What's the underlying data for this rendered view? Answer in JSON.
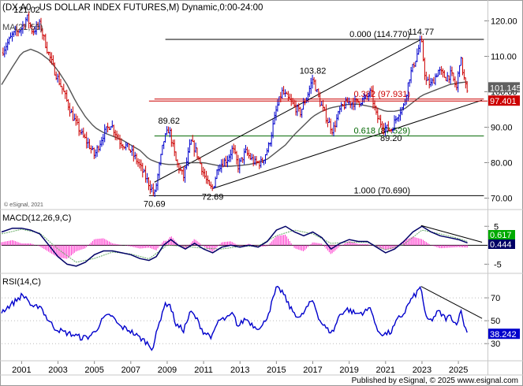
{
  "chart_data": [
    {
      "type": "line",
      "title": "(DX A0 - US DOLLAR INDEX FUTURES,M) Dynamic,0:00-24:00",
      "legend": "MA(21,55)",
      "watermark": "© eSignal, 2021",
      "ylim": [
        67,
        125
      ],
      "yticks": [
        "120.00",
        "110.00",
        "100.00",
        "90.00",
        "80.00",
        "70.00"
      ],
      "ytick_values": [
        120,
        110,
        100,
        90,
        80,
        70
      ],
      "x_labels": [
        "2001",
        "2003",
        "2005",
        "2007",
        "2009",
        "2011",
        "2013",
        "2015",
        "2017",
        "2019",
        "2021",
        "2023",
        "2025"
      ],
      "x_label_years": [
        2001,
        2003,
        2005,
        2007,
        2009,
        2011,
        2013,
        2015,
        2017,
        2019,
        2021,
        2023,
        2025
      ],
      "xlim": [
        1999.9,
        2026.6
      ],
      "price_keypoints": [
        [
          1999.9,
          111
        ],
        [
          2000.5,
          116
        ],
        [
          2001.0,
          118
        ],
        [
          2001.3,
          121
        ],
        [
          2001.6,
          117
        ],
        [
          2002.0,
          119
        ],
        [
          2002.4,
          112
        ],
        [
          2002.8,
          106
        ],
        [
          2003.3,
          100
        ],
        [
          2003.8,
          93
        ],
        [
          2004.3,
          88
        ],
        [
          2004.7,
          85
        ],
        [
          2005.0,
          82
        ],
        [
          2005.5,
          88
        ],
        [
          2005.9,
          91
        ],
        [
          2006.4,
          86
        ],
        [
          2006.9,
          84
        ],
        [
          2007.4,
          80
        ],
        [
          2007.8,
          76
        ],
        [
          2008.2,
          72
        ],
        [
          2008.3,
          70.69
        ],
        [
          2008.6,
          80
        ],
        [
          2008.8,
          86
        ],
        [
          2009.1,
          89.62
        ],
        [
          2009.5,
          80
        ],
        [
          2009.9,
          76
        ],
        [
          2010.3,
          86
        ],
        [
          2010.6,
          83
        ],
        [
          2011.0,
          77
        ],
        [
          2011.3,
          73
        ],
        [
          2011.5,
          72.69
        ],
        [
          2011.8,
          79
        ],
        [
          2012.3,
          81
        ],
        [
          2012.6,
          84
        ],
        [
          2012.9,
          79
        ],
        [
          2013.3,
          83
        ],
        [
          2013.8,
          80
        ],
        [
          2014.2,
          80
        ],
        [
          2014.6,
          85
        ],
        [
          2015.0,
          95
        ],
        [
          2015.3,
          100
        ],
        [
          2015.8,
          97
        ],
        [
          2016.3,
          94
        ],
        [
          2016.7,
          99
        ],
        [
          2017.0,
          103.82
        ],
        [
          2017.4,
          97
        ],
        [
          2017.8,
          92
        ],
        [
          2018.1,
          89
        ],
        [
          2018.5,
          95
        ],
        [
          2018.9,
          97
        ],
        [
          2019.4,
          97
        ],
        [
          2019.9,
          98
        ],
        [
          2020.2,
          100
        ],
        [
          2020.5,
          93
        ],
        [
          2020.9,
          90
        ],
        [
          2021.3,
          89.2
        ],
        [
          2021.7,
          94
        ],
        [
          2022.0,
          96
        ],
        [
          2022.3,
          104
        ],
        [
          2022.7,
          110
        ],
        [
          2022.95,
          114.77
        ],
        [
          2023.2,
          103
        ],
        [
          2023.5,
          102
        ],
        [
          2023.9,
          106
        ],
        [
          2024.3,
          104
        ],
        [
          2024.6,
          105
        ],
        [
          2024.9,
          101
        ],
        [
          2025.1,
          110
        ],
        [
          2025.3,
          104
        ],
        [
          2025.5,
          99
        ]
      ],
      "ma_keypoints": [
        [
          1999.9,
          102
        ],
        [
          2000.5,
          107
        ],
        [
          2001.0,
          111
        ],
        [
          2001.5,
          112
        ],
        [
          2002.0,
          111
        ],
        [
          2002.5,
          109
        ],
        [
          2003.0,
          106
        ],
        [
          2003.5,
          102
        ],
        [
          2004.0,
          97
        ],
        [
          2004.5,
          93
        ],
        [
          2005.0,
          90
        ],
        [
          2005.5,
          88.5
        ],
        [
          2006.0,
          87.5
        ],
        [
          2006.5,
          86.5
        ],
        [
          2007.0,
          85
        ],
        [
          2007.5,
          83.5
        ],
        [
          2008.0,
          81
        ],
        [
          2008.5,
          80
        ],
        [
          2009.0,
          79.5
        ],
        [
          2009.5,
          79.5
        ],
        [
          2010.0,
          80
        ],
        [
          2010.5,
          80
        ],
        [
          2011.0,
          80
        ],
        [
          2011.5,
          79.5
        ],
        [
          2012.0,
          79
        ],
        [
          2012.5,
          79
        ],
        [
          2013.0,
          79.2
        ],
        [
          2013.5,
          79.5
        ],
        [
          2014.0,
          80
        ],
        [
          2014.5,
          81
        ],
        [
          2015.0,
          83
        ],
        [
          2015.5,
          85
        ],
        [
          2016.0,
          88
        ],
        [
          2016.5,
          90.5
        ],
        [
          2017.0,
          93
        ],
        [
          2017.5,
          94.5
        ],
        [
          2018.0,
          95.5
        ],
        [
          2018.5,
          96
        ],
        [
          2019.0,
          96.5
        ],
        [
          2019.5,
          96.5
        ],
        [
          2020.0,
          96
        ],
        [
          2020.5,
          95.5
        ],
        [
          2021.0,
          94.5
        ],
        [
          2021.5,
          94.5
        ],
        [
          2022.0,
          95
        ],
        [
          2022.5,
          97
        ],
        [
          2023.0,
          99
        ],
        [
          2023.5,
          100
        ],
        [
          2024.0,
          101
        ],
        [
          2024.5,
          102
        ],
        [
          2025.0,
          102.5
        ],
        [
          2025.5,
          102.8
        ]
      ],
      "fib_levels": [
        {
          "label": "0.000 (114.770)",
          "value": 114.77,
          "color": "#000000"
        },
        {
          "label": "0.382 (97.931)",
          "value": 97.931,
          "color": "#cc0000"
        },
        {
          "label": "0.618 (87.529)",
          "value": 87.529,
          "color": "#006600"
        },
        {
          "label": "1.000 (70.690)",
          "value": 70.69,
          "color": "#000000"
        }
      ],
      "fib_x_start": 2008.0,
      "channel_lines": [
        {
          "from": [
            2008.3,
            74.5
          ],
          "to": [
            2022.95,
            114.77
          ],
          "extend_to": 2022.95
        },
        {
          "from": [
            2011.5,
            72.69
          ],
          "to": [
            2021.3,
            89.2
          ],
          "extend_to": 2026.3
        }
      ],
      "annotations": [
        {
          "text": "121.02",
          "x": 2001.2,
          "y": 121.02
        },
        {
          "text": "70.69",
          "x": 2008.3,
          "y": 70.69
        },
        {
          "text": "89.62",
          "x": 2009.1,
          "y": 89.62
        },
        {
          "text": "72.69",
          "x": 2011.5,
          "y": 72.69
        },
        {
          "text": "103.82",
          "x": 2017.0,
          "y": 103.82
        },
        {
          "text": "89.20",
          "x": 2021.3,
          "y": 89.2
        },
        {
          "text": "114.77",
          "x": 2022.95,
          "y": 114.77
        }
      ],
      "last_price_label": "101.145",
      "marker_label": "97.401",
      "marker_value": 97.401,
      "last_value": 101.145,
      "colors": {
        "price": "#0000cc",
        "ma": "#555555",
        "channel": "#000000",
        "marker": "#cc0000",
        "last": "#606060"
      }
    },
    {
      "type": "line",
      "title": "MACD(12,26,9,C)",
      "ylim": [
        -7,
        9
      ],
      "yticks": [
        "5",
        "-5"
      ],
      "ytick_values": [
        5,
        -5
      ],
      "macd_keypoints": [
        [
          1999.9,
          3.5
        ],
        [
          2000.5,
          4.5
        ],
        [
          2001.0,
          4.5
        ],
        [
          2001.5,
          4.0
        ],
        [
          2002.0,
          3.0
        ],
        [
          2002.5,
          0
        ],
        [
          2003.0,
          -3
        ],
        [
          2003.5,
          -5
        ],
        [
          2004.0,
          -5.5
        ],
        [
          2004.5,
          -4.5
        ],
        [
          2005.0,
          -2.5
        ],
        [
          2005.5,
          -1.5
        ],
        [
          2006.0,
          -1.5
        ],
        [
          2006.5,
          -2
        ],
        [
          2007.0,
          -2.5
        ],
        [
          2007.5,
          -3.5
        ],
        [
          2008.0,
          -4
        ],
        [
          2008.4,
          -3
        ],
        [
          2008.8,
          0
        ],
        [
          2009.2,
          1.5
        ],
        [
          2009.6,
          0
        ],
        [
          2010.0,
          -1
        ],
        [
          2010.5,
          0.5
        ],
        [
          2011.0,
          -1
        ],
        [
          2011.5,
          -2
        ],
        [
          2012.0,
          -0.5
        ],
        [
          2012.5,
          0
        ],
        [
          2013.0,
          -0.5
        ],
        [
          2013.5,
          0
        ],
        [
          2014.0,
          -0.5
        ],
        [
          2014.5,
          1
        ],
        [
          2015.0,
          4
        ],
        [
          2015.5,
          5
        ],
        [
          2016.0,
          3.5
        ],
        [
          2016.5,
          2.5
        ],
        [
          2017.0,
          3.5
        ],
        [
          2017.5,
          2
        ],
        [
          2018.0,
          -1
        ],
        [
          2018.5,
          0.5
        ],
        [
          2019.0,
          1.5
        ],
        [
          2019.5,
          1
        ],
        [
          2020.0,
          1
        ],
        [
          2020.5,
          -0.5
        ],
        [
          2021.0,
          -2
        ],
        [
          2021.5,
          -1
        ],
        [
          2022.0,
          1
        ],
        [
          2022.5,
          3.5
        ],
        [
          2023.0,
          5
        ],
        [
          2023.5,
          3.5
        ],
        [
          2024.0,
          2.5
        ],
        [
          2024.5,
          2
        ],
        [
          2025.0,
          1.5
        ],
        [
          2025.5,
          0.617
        ]
      ],
      "signal_keypoints": [
        [
          1999.9,
          3
        ],
        [
          2001.0,
          4.2
        ],
        [
          2002.0,
          3.2
        ],
        [
          2003.0,
          -1
        ],
        [
          2004.0,
          -4.5
        ],
        [
          2005.0,
          -3.5
        ],
        [
          2006.0,
          -1.8
        ],
        [
          2007.0,
          -2.3
        ],
        [
          2008.0,
          -3.6
        ],
        [
          2009.0,
          0
        ],
        [
          2010.0,
          -0.3
        ],
        [
          2011.0,
          -0.8
        ],
        [
          2012.0,
          -1
        ],
        [
          2013.0,
          -0.3
        ],
        [
          2014.0,
          -0.2
        ],
        [
          2015.0,
          2.5
        ],
        [
          2016.0,
          4
        ],
        [
          2017.0,
          3
        ],
        [
          2018.0,
          0.5
        ],
        [
          2019.0,
          0.8
        ],
        [
          2020.0,
          0.8
        ],
        [
          2021.0,
          -1.2
        ],
        [
          2022.0,
          0.2
        ],
        [
          2023.0,
          4
        ],
        [
          2024.0,
          3
        ],
        [
          2025.0,
          1.8
        ],
        [
          2025.5,
          1
        ]
      ],
      "trend_line": {
        "from": [
          2022.95,
          5.2
        ],
        "to": [
          2026.3,
          0.8
        ]
      },
      "value_labels": [
        "0.617",
        "0.444"
      ],
      "colors": {
        "macd": "#000066",
        "signal": "#66aa66",
        "hist": "#ff33cc",
        "zero": "#000000",
        "label_a": "#00aa00",
        "label_b": "#000066"
      }
    },
    {
      "type": "line",
      "title": "RSI(14,C)",
      "ylim": [
        15,
        90
      ],
      "yticks": [
        "70",
        "50",
        "30"
      ],
      "ytick_values": [
        70,
        50,
        30
      ],
      "rsi_keypoints": [
        [
          1999.9,
          58
        ],
        [
          2000.5,
          65
        ],
        [
          2001.0,
          72
        ],
        [
          2001.3,
          70
        ],
        [
          2001.6,
          60
        ],
        [
          2002.0,
          64
        ],
        [
          2002.4,
          52
        ],
        [
          2002.8,
          44
        ],
        [
          2003.3,
          40
        ],
        [
          2003.8,
          38
        ],
        [
          2004.3,
          35
        ],
        [
          2004.7,
          36
        ],
        [
          2005.0,
          40
        ],
        [
          2005.5,
          52
        ],
        [
          2005.9,
          55
        ],
        [
          2006.4,
          45
        ],
        [
          2006.9,
          42
        ],
        [
          2007.4,
          36
        ],
        [
          2007.8,
          32
        ],
        [
          2008.2,
          26
        ],
        [
          2008.6,
          50
        ],
        [
          2008.8,
          62
        ],
        [
          2009.1,
          66
        ],
        [
          2009.5,
          46
        ],
        [
          2009.9,
          42
        ],
        [
          2010.3,
          58
        ],
        [
          2010.6,
          52
        ],
        [
          2011.0,
          40
        ],
        [
          2011.5,
          36
        ],
        [
          2011.8,
          50
        ],
        [
          2012.3,
          52
        ],
        [
          2012.6,
          56
        ],
        [
          2012.9,
          45
        ],
        [
          2013.3,
          52
        ],
        [
          2013.8,
          45
        ],
        [
          2014.2,
          44
        ],
        [
          2014.6,
          58
        ],
        [
          2015.0,
          78
        ],
        [
          2015.3,
          76
        ],
        [
          2015.8,
          60
        ],
        [
          2016.3,
          52
        ],
        [
          2016.7,
          62
        ],
        [
          2017.0,
          68
        ],
        [
          2017.4,
          50
        ],
        [
          2017.8,
          42
        ],
        [
          2018.1,
          40
        ],
        [
          2018.5,
          56
        ],
        [
          2018.9,
          60
        ],
        [
          2019.4,
          56
        ],
        [
          2019.9,
          58
        ],
        [
          2020.2,
          62
        ],
        [
          2020.5,
          42
        ],
        [
          2020.9,
          38
        ],
        [
          2021.3,
          40
        ],
        [
          2021.7,
          52
        ],
        [
          2022.0,
          56
        ],
        [
          2022.3,
          66
        ],
        [
          2022.7,
          74
        ],
        [
          2022.95,
          80
        ],
        [
          2023.2,
          52
        ],
        [
          2023.5,
          50
        ],
        [
          2023.9,
          58
        ],
        [
          2024.3,
          52
        ],
        [
          2024.6,
          54
        ],
        [
          2024.9,
          46
        ],
        [
          2025.1,
          60
        ],
        [
          2025.3,
          48
        ],
        [
          2025.5,
          38.242
        ]
      ],
      "trend_line": {
        "from": [
          2022.95,
          80
        ],
        "to": [
          2026.3,
          52
        ]
      },
      "value_label": "38.242",
      "colors": {
        "rsi": "#0000cc",
        "ref": "#bbbbbb"
      }
    }
  ],
  "footer": {
    "text": "Published by eSignal, © 2025 www.esignal.com"
  }
}
